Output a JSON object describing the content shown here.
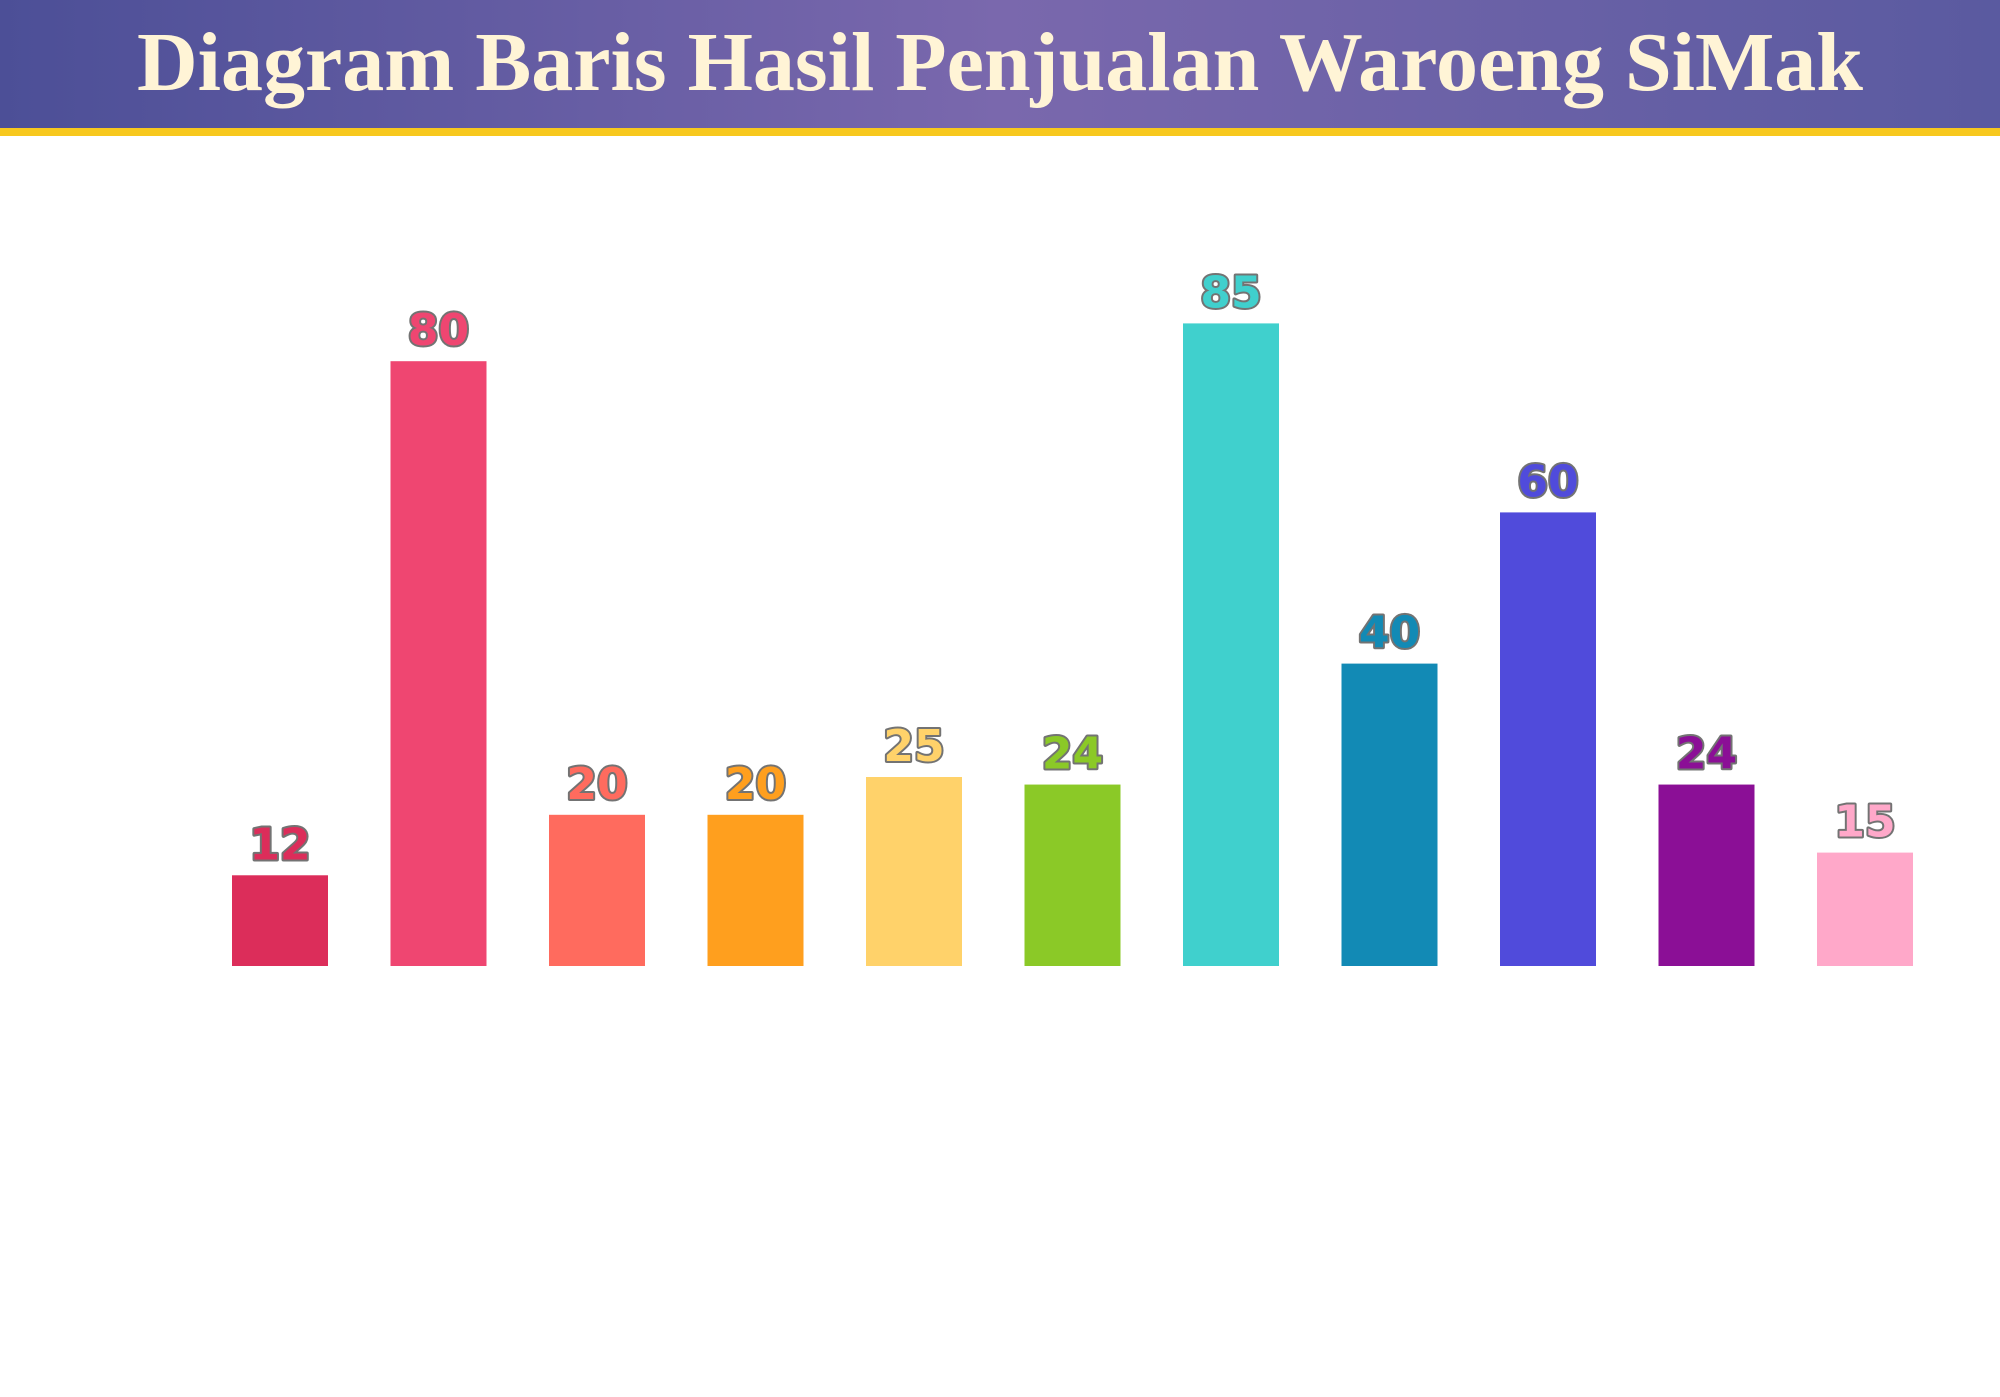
{
  "chart_data": {
    "type": "bar",
    "title": "Diagram Baris Hasil Penjualan Waroeng SiMak",
    "categories": [
      null,
      null,
      null,
      null,
      null,
      null,
      null,
      null,
      null,
      null,
      null
    ],
    "values": [
      12,
      80,
      20,
      20,
      25,
      24,
      85,
      40,
      60,
      24,
      15
    ],
    "colors": [
      "#dc2d5a",
      "#ef4671",
      "#ff6b5e",
      "#ff9f1e",
      "#ffd26a",
      "#8bc927",
      "#40d0cd",
      "#128ab5",
      "#504bdb",
      "#8b0f96",
      "#ffa8c9"
    ]
  }
}
